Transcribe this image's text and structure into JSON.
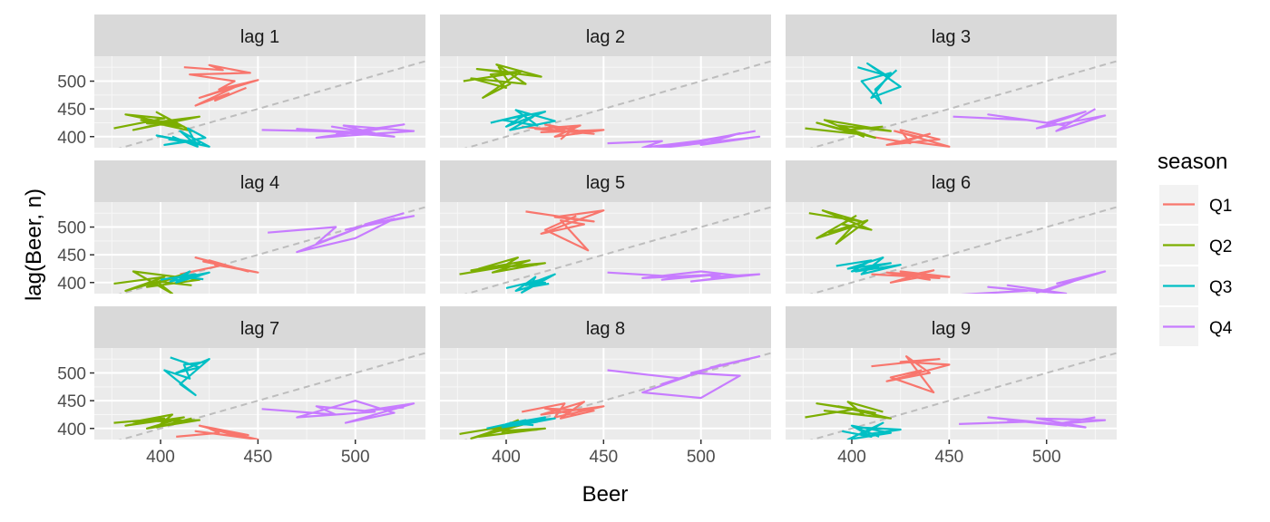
{
  "chart_data": {
    "type": "line",
    "facets": [
      "lag 1",
      "lag 2",
      "lag 3",
      "lag 4",
      "lag 5",
      "lag 6",
      "lag 7",
      "lag 8",
      "lag 9"
    ],
    "xlabel": "Beer",
    "ylabel": "lag(Beer, n)",
    "x_ticks": [
      400,
      450,
      500
    ],
    "y_ticks": [
      400,
      450,
      500
    ],
    "xlim": [
      366,
      536
    ],
    "ylim": [
      380,
      545
    ],
    "reference_line": "y = x (dashed)",
    "legend": {
      "title": "season",
      "placement": "right",
      "entries": [
        "Q1",
        "Q2",
        "Q3",
        "Q4"
      ]
    },
    "colors": {
      "Q1": "#F8766D",
      "Q2": "#7CAE00",
      "Q3": "#00BFC4",
      "Q4": "#C77CFF"
    },
    "series": [
      {
        "facet": "lag 1",
        "name": "Q1",
        "x": [
          412,
          432,
          425,
          446,
          415,
          438,
          430,
          450,
          420,
          441,
          418,
          435,
          428,
          444
        ],
        "y": [
          525,
          520,
          529,
          515,
          512,
          500,
          485,
          502,
          470,
          494,
          456,
          478,
          465,
          488
        ]
      },
      {
        "facet": "lag 1",
        "name": "Q2",
        "x": [
          376,
          402,
          382,
          412,
          393,
          420,
          386,
          406,
          398,
          416,
          390,
          410
        ],
        "y": [
          415,
          433,
          440,
          418,
          424,
          436,
          412,
          428,
          444,
          410,
          430,
          422
        ]
      },
      {
        "facet": "lag 1",
        "name": "Q3",
        "x": [
          404,
          420,
          398,
          425,
          410,
          416,
          402,
          423,
          414,
          419,
          406
        ],
        "y": [
          395,
          388,
          402,
          382,
          410,
          392,
          385,
          398,
          415,
          382,
          400
        ]
      },
      {
        "facet": "lag 1",
        "name": "Q4",
        "x": [
          452,
          505,
          488,
          520,
          470,
          510,
          494,
          530,
          480,
          515,
          500,
          525,
          490
        ],
        "y": [
          412,
          408,
          418,
          400,
          414,
          406,
          420,
          410,
          398,
          415,
          408,
          422,
          405
        ]
      },
      {
        "facet": "lag 2",
        "name": "Q1",
        "x": [
          408,
          430,
          420,
          445,
          415,
          438,
          425,
          450,
          418,
          435,
          428
        ],
        "y": [
          418,
          410,
          422,
          405,
          414,
          420,
          400,
          412,
          408,
          416,
          395
        ]
      },
      {
        "facet": "lag 2",
        "name": "Q2",
        "x": [
          378,
          405,
          385,
          418,
          395,
          410,
          382,
          400,
          392,
          408,
          388,
          402,
          396
        ],
        "y": [
          500,
          515,
          522,
          508,
          530,
          495,
          505,
          488,
          512,
          518,
          470,
          495,
          526
        ]
      },
      {
        "facet": "lag 2",
        "name": "Q3",
        "x": [
          392,
          410,
          400,
          420,
          398,
          416,
          405,
          425,
          402,
          414
        ],
        "y": [
          425,
          440,
          418,
          445,
          430,
          420,
          448,
          428,
          412,
          436
        ]
      },
      {
        "facet": "lag 2",
        "name": "Q4",
        "x": [
          452,
          480,
          470,
          505,
          490,
          520,
          500,
          530,
          475,
          512,
          495,
          528
        ],
        "y": [
          388,
          392,
          380,
          395,
          384,
          406,
          385,
          400,
          378,
          398,
          390,
          410
        ]
      },
      {
        "facet": "lag 3",
        "name": "Q1",
        "x": [
          410,
          430,
          425,
          445,
          418,
          440,
          428,
          450,
          422,
          436
        ],
        "y": [
          400,
          388,
          412,
          395,
          385,
          405,
          392,
          382,
          410,
          398
        ]
      },
      {
        "facet": "lag 3",
        "name": "Q2",
        "x": [
          376,
          402,
          382,
          412,
          393,
          420,
          386,
          406,
          398,
          416
        ],
        "y": [
          415,
          405,
          425,
          398,
          420,
          410,
          430,
          400,
          412,
          418
        ]
      },
      {
        "facet": "lag 3",
        "name": "Q3",
        "x": [
          403,
          418,
          408,
          425,
          410,
          420,
          405,
          415,
          412,
          423
        ],
        "y": [
          525,
          510,
          532,
          490,
          470,
          515,
          500,
          460,
          485,
          520
        ]
      },
      {
        "facet": "lag 3",
        "name": "Q4",
        "x": [
          452,
          490,
          470,
          510,
          480,
          500,
          520,
          495,
          530,
          505,
          525
        ],
        "y": [
          436,
          430,
          440,
          420,
          435,
          425,
          445,
          415,
          438,
          410,
          450
        ]
      },
      {
        "facet": "lag 4",
        "name": "Q1",
        "x": [
          410,
          430,
          425,
          445,
          418,
          440,
          428,
          450,
          422,
          436
        ],
        "y": [
          415,
          430,
          440,
          420,
          445,
          425,
          432,
          418,
          438,
          428
        ]
      },
      {
        "facet": "lag 4",
        "name": "Q2",
        "x": [
          376,
          402,
          382,
          412,
          393,
          420,
          386,
          406,
          398,
          416
        ],
        "y": [
          398,
          410,
          385,
          415,
          392,
          405,
          420,
          380,
          402,
          395
        ]
      },
      {
        "facet": "lag 4",
        "name": "Q3",
        "x": [
          400,
          418,
          408,
          425,
          410,
          420,
          405,
          415,
          412,
          422
        ],
        "y": [
          405,
          415,
          400,
          418,
          408,
          412,
          402,
          420,
          410,
          406
        ]
      },
      {
        "facet": "lag 4",
        "name": "Q4",
        "x": [
          455,
          490,
          480,
          510,
          470,
          500,
          520,
          495,
          530,
          505,
          525
        ],
        "y": [
          490,
          500,
          470,
          510,
          455,
          480,
          515,
          495,
          520,
          505,
          525
        ]
      },
      {
        "facet": "lag 5",
        "name": "Q1",
        "x": [
          410,
          445,
          425,
          450,
          418,
          440,
          428,
          442,
          420,
          436
        ],
        "y": [
          528,
          510,
          518,
          530,
          488,
          505,
          512,
          458,
          495,
          520
        ]
      },
      {
        "facet": "lag 5",
        "name": "Q2",
        "x": [
          376,
          402,
          382,
          412,
          393,
          420,
          386,
          406,
          398,
          416
        ],
        "y": [
          415,
          430,
          422,
          440,
          418,
          435,
          425,
          445,
          428,
          432
        ]
      },
      {
        "facet": "lag 5",
        "name": "Q3",
        "x": [
          400,
          418,
          408,
          425,
          410,
          420,
          405,
          415,
          412,
          422
        ],
        "y": [
          390,
          405,
          382,
          415,
          395,
          400,
          385,
          410,
          392,
          398
        ]
      },
      {
        "facet": "lag 5",
        "name": "Q4",
        "x": [
          452,
          490,
          480,
          510,
          470,
          500,
          520,
          495,
          530,
          505
        ],
        "y": [
          418,
          410,
          405,
          415,
          408,
          420,
          412,
          402,
          415,
          410
        ]
      },
      {
        "facet": "lag 6",
        "name": "Q1",
        "x": [
          410,
          445,
          425,
          450,
          418,
          440,
          428,
          442,
          420,
          436
        ],
        "y": [
          415,
          408,
          420,
          410,
          418,
          405,
          412,
          422,
          400,
          410
        ]
      },
      {
        "facet": "lag 6",
        "name": "Q2",
        "x": [
          378,
          405,
          385,
          410,
          395,
          402,
          382,
          400,
          392,
          408,
          388
        ],
        "y": [
          525,
          510,
          530,
          495,
          505,
          520,
          480,
          500,
          470,
          512,
          490
        ]
      },
      {
        "facet": "lag 6",
        "name": "Q3",
        "x": [
          392,
          410,
          400,
          420,
          398,
          416,
          405,
          425,
          402,
          414
        ],
        "y": [
          430,
          440,
          420,
          435,
          425,
          445,
          415,
          432,
          420,
          428
        ]
      },
      {
        "facet": "lag 6",
        "name": "Q4",
        "x": [
          455,
          490,
          470,
          510,
          480,
          500,
          520,
          495,
          530,
          505
        ],
        "y": [
          378,
          385,
          392,
          380,
          395,
          385,
          410,
          382,
          420,
          398
        ]
      },
      {
        "facet": "lag 7",
        "name": "Q1",
        "x": [
          408,
          430,
          425,
          450,
          418,
          440,
          428,
          445,
          420,
          436
        ],
        "y": [
          385,
          392,
          400,
          380,
          395,
          385,
          398,
          388,
          405,
          390
        ]
      },
      {
        "facet": "lag 7",
        "name": "Q2",
        "x": [
          376,
          402,
          382,
          412,
          393,
          420,
          386,
          406,
          398,
          416
        ],
        "y": [
          410,
          418,
          405,
          420,
          400,
          415,
          412,
          425,
          402,
          418
        ]
      },
      {
        "facet": "lag 7",
        "name": "Q3",
        "x": [
          405,
          420,
          408,
          425,
          410,
          418,
          402,
          415,
          412,
          423
        ],
        "y": [
          528,
          510,
          500,
          525,
          480,
          460,
          505,
          490,
          515,
          520
        ]
      },
      {
        "facet": "lag 7",
        "name": "Q4",
        "x": [
          452,
          490,
          480,
          510,
          470,
          500,
          520,
          495,
          530,
          505,
          525
        ],
        "y": [
          435,
          425,
          440,
          430,
          420,
          450,
          428,
          410,
          445,
          432,
          438
        ]
      },
      {
        "facet": "lag 8",
        "name": "Q1",
        "x": [
          408,
          430,
          425,
          450,
          418,
          440,
          428,
          445,
          420,
          436
        ],
        "y": [
          430,
          445,
          420,
          440,
          425,
          448,
          418,
          432,
          436,
          424
        ]
      },
      {
        "facet": "lag 8",
        "name": "Q2",
        "x": [
          376,
          402,
          382,
          412,
          393,
          420,
          386,
          406,
          398,
          416
        ],
        "y": [
          390,
          405,
          382,
          410,
          395,
          400,
          385,
          415,
          392,
          398
        ]
      },
      {
        "facet": "lag 8",
        "name": "Q3",
        "x": [
          390,
          410,
          400,
          420,
          398,
          416,
          405,
          425,
          402,
          414
        ],
        "y": [
          400,
          415,
          408,
          420,
          402,
          412,
          405,
          418,
          410,
          406
        ]
      },
      {
        "facet": "lag 8",
        "name": "Q4",
        "x": [
          452,
          490,
          480,
          510,
          470,
          500,
          520,
          495,
          530,
          505,
          525
        ],
        "y": [
          505,
          490,
          480,
          515,
          465,
          455,
          495,
          500,
          530,
          510,
          525
        ]
      },
      {
        "facet": "lag 9",
        "name": "Q1",
        "x": [
          410,
          445,
          425,
          450,
          418,
          440,
          428,
          442,
          420,
          436
        ],
        "y": [
          512,
          525,
          520,
          515,
          485,
          500,
          530,
          465,
          492,
          505
        ]
      },
      {
        "facet": "lag 9",
        "name": "Q2",
        "x": [
          376,
          402,
          382,
          412,
          393,
          420,
          386,
          406,
          398,
          416
        ],
        "y": [
          420,
          435,
          445,
          428,
          440,
          418,
          432,
          425,
          448,
          430
        ]
      },
      {
        "facet": "lag 9",
        "name": "Q3",
        "x": [
          395,
          410,
          400,
          420,
          398,
          416,
          405,
          425,
          402,
          414
        ],
        "y": [
          395,
          385,
          405,
          392,
          380,
          410,
          388,
          398,
          402,
          385
        ]
      },
      {
        "facet": "lag 9",
        "name": "Q4",
        "x": [
          455,
          490,
          480,
          510,
          470,
          500,
          520,
          495,
          530,
          505,
          525
        ],
        "y": [
          408,
          412,
          415,
          405,
          420,
          410,
          402,
          418,
          415,
          408,
          420
        ]
      }
    ]
  }
}
